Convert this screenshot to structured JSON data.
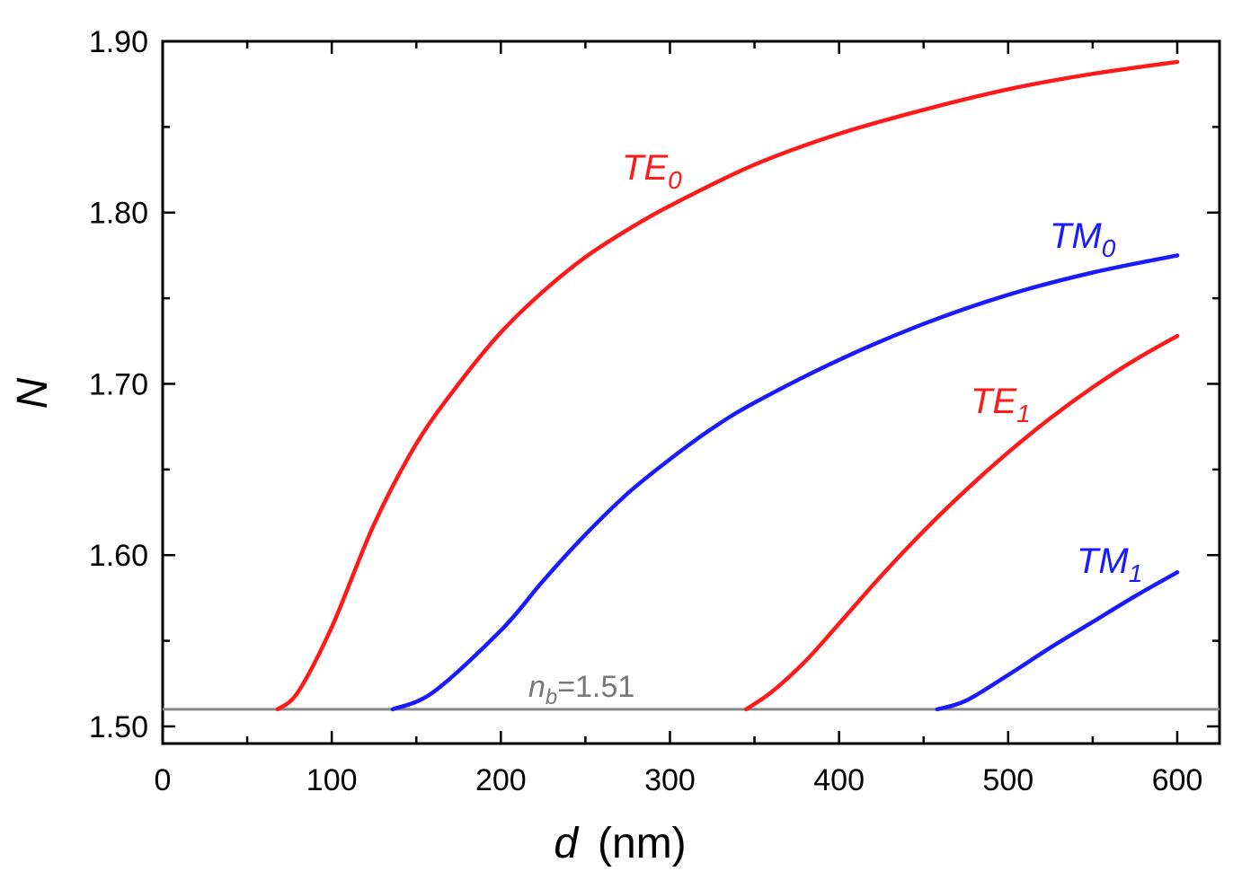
{
  "chart_data": {
    "type": "line",
    "title": "",
    "xlabel": {
      "symbol": "d",
      "unit": "(nm)"
    },
    "ylabel": "N",
    "xlim": [
      0,
      625
    ],
    "ylim": [
      1.49,
      1.9
    ],
    "xticks": [
      0,
      100,
      200,
      300,
      400,
      500,
      600
    ],
    "xtick_labels": [
      "0",
      "100",
      "200",
      "300",
      "400",
      "500",
      "600"
    ],
    "yticks": [
      1.5,
      1.6,
      1.7,
      1.8,
      1.9
    ],
    "ytick_labels": [
      "1.50",
      "1.60",
      "1.70",
      "1.80",
      "1.90"
    ],
    "grid": false,
    "baseline": {
      "value": 1.51,
      "label_var": "n",
      "label_sub": "b",
      "label_rest": "=1.51",
      "color": "#888888"
    },
    "series": [
      {
        "name": "TE0",
        "label_main": "TE",
        "label_sub": "0",
        "color": "#ff1a1a",
        "x": [
          68,
          80,
          100,
          125,
          150,
          175,
          200,
          225,
          250,
          275,
          300,
          350,
          400,
          450,
          500,
          550,
          600
        ],
        "y": [
          1.51,
          1.52,
          1.558,
          1.618,
          1.665,
          1.7,
          1.73,
          1.754,
          1.774,
          1.79,
          1.804,
          1.828,
          1.846,
          1.86,
          1.872,
          1.881,
          1.888
        ]
      },
      {
        "name": "TM0",
        "label_main": "TM",
        "label_sub": "0",
        "color": "#1a1aff",
        "x": [
          136,
          160,
          200,
          225,
          250,
          275,
          300,
          325,
          350,
          400,
          450,
          500,
          550,
          600
        ],
        "y": [
          1.51,
          1.52,
          1.556,
          1.585,
          1.612,
          1.636,
          1.656,
          1.674,
          1.689,
          1.714,
          1.735,
          1.752,
          1.765,
          1.775
        ]
      },
      {
        "name": "TE1",
        "label_main": "TE",
        "label_sub": "1",
        "color": "#ff1a1a",
        "x": [
          345,
          360,
          380,
          400,
          425,
          450,
          475,
          500,
          525,
          550,
          575,
          600
        ],
        "y": [
          1.51,
          1.52,
          1.538,
          1.56,
          1.588,
          1.614,
          1.638,
          1.66,
          1.68,
          1.698,
          1.714,
          1.728
        ]
      },
      {
        "name": "TM1",
        "label_main": "TM",
        "label_sub": "1",
        "color": "#1a1aff",
        "x": [
          458,
          475,
          500,
          525,
          550,
          575,
          600
        ],
        "y": [
          1.51,
          1.515,
          1.53,
          1.546,
          1.561,
          1.576,
          1.59
        ]
      }
    ]
  }
}
